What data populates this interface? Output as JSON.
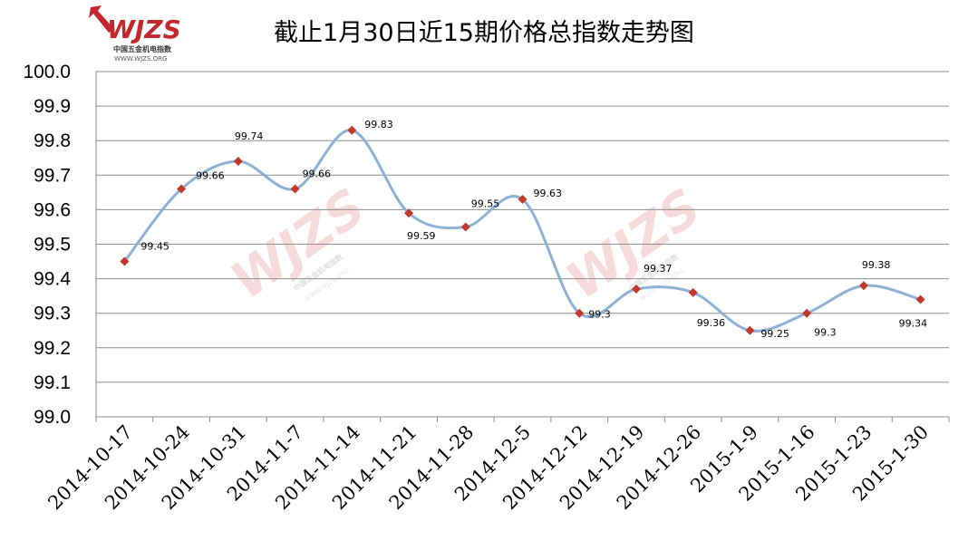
{
  "logo": {
    "brand": "WJZS",
    "subtitle": "中国五金机电指数",
    "url": "WWW.WJZS.ORG",
    "color": "#c4262e"
  },
  "chart_data": {
    "type": "line",
    "title": "截止1月30日近15期价格总指数走势图",
    "categories": [
      "2014-10-17",
      "2014-10-24",
      "2014-10-31",
      "2014-11-7",
      "2014-11-14",
      "2014-11-21",
      "2014-11-28",
      "2014-12-5",
      "2014-12-12",
      "2014-12-19",
      "2014-12-26",
      "2015-1-9",
      "2015-1-16",
      "2015-1-23",
      "2015-1-30"
    ],
    "values": [
      99.45,
      99.66,
      99.74,
      99.66,
      99.83,
      99.59,
      99.55,
      99.63,
      99.3,
      99.37,
      99.36,
      99.25,
      99.3,
      99.38,
      99.34
    ],
    "data_labels": [
      "99.45",
      "99.66",
      "99.74",
      "99.66",
      "99.83",
      "99.59",
      "99.55",
      "99.63",
      "99.3",
      "99.37",
      "99.36",
      "99.25",
      "99.3",
      "99.38",
      "99.34"
    ],
    "yticks": [
      "99.0",
      "99.1",
      "99.2",
      "99.3",
      "99.4",
      "99.5",
      "99.6",
      "99.7",
      "99.8",
      "99.9",
      "100.0"
    ],
    "ylim": [
      99.0,
      100.0
    ],
    "grid": true,
    "smooth": true,
    "line_color": "#8eb0d6",
    "marker_color": "#c0392b",
    "marker": "diamond"
  }
}
